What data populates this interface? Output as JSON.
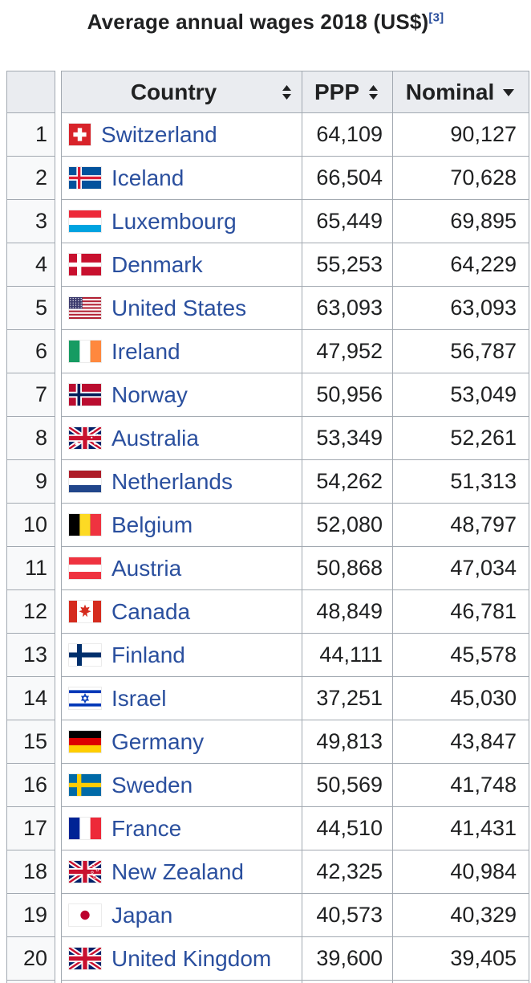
{
  "title": {
    "text": "Average annual wages 2018 (US$)",
    "reference": "[3]"
  },
  "colors": {
    "link": "#2a4f9e",
    "text": "#202122",
    "border": "#a2a9b1",
    "header_bg": "#eaecf0",
    "rank_cell_bg": "#f8f9fa",
    "row_bg": "#ffffff"
  },
  "table": {
    "headers": {
      "rank": "",
      "country": "Country",
      "ppp": "PPP",
      "nominal": "Nominal"
    },
    "sort_state": {
      "country": "sortable",
      "ppp": "sortable",
      "nominal": "descending"
    },
    "rows": [
      {
        "rank": "1",
        "country": "Switzerland",
        "flag": "switzerland",
        "ppp": "64,109",
        "nominal": "90,127"
      },
      {
        "rank": "2",
        "country": "Iceland",
        "flag": "iceland",
        "ppp": "66,504",
        "nominal": "70,628"
      },
      {
        "rank": "3",
        "country": "Luxembourg",
        "flag": "luxembourg",
        "ppp": "65,449",
        "nominal": "69,895"
      },
      {
        "rank": "4",
        "country": "Denmark",
        "flag": "denmark",
        "ppp": "55,253",
        "nominal": "64,229"
      },
      {
        "rank": "5",
        "country": "United States",
        "flag": "united-states",
        "ppp": "63,093",
        "nominal": "63,093"
      },
      {
        "rank": "6",
        "country": "Ireland",
        "flag": "ireland",
        "ppp": "47,952",
        "nominal": "56,787"
      },
      {
        "rank": "7",
        "country": "Norway",
        "flag": "norway",
        "ppp": "50,956",
        "nominal": "53,049"
      },
      {
        "rank": "8",
        "country": "Australia",
        "flag": "australia",
        "ppp": "53,349",
        "nominal": "52,261"
      },
      {
        "rank": "9",
        "country": "Netherlands",
        "flag": "netherlands",
        "ppp": "54,262",
        "nominal": "51,313"
      },
      {
        "rank": "10",
        "country": "Belgium",
        "flag": "belgium",
        "ppp": "52,080",
        "nominal": "48,797"
      },
      {
        "rank": "11",
        "country": "Austria",
        "flag": "austria",
        "ppp": "50,868",
        "nominal": "47,034"
      },
      {
        "rank": "12",
        "country": "Canada",
        "flag": "canada",
        "ppp": "48,849",
        "nominal": "46,781"
      },
      {
        "rank": "13",
        "country": "Finland",
        "flag": "finland",
        "ppp": "44,111",
        "nominal": "45,578"
      },
      {
        "rank": "14",
        "country": "Israel",
        "flag": "israel",
        "ppp": "37,251",
        "nominal": "45,030"
      },
      {
        "rank": "15",
        "country": "Germany",
        "flag": "germany",
        "ppp": "49,813",
        "nominal": "43,847"
      },
      {
        "rank": "16",
        "country": "Sweden",
        "flag": "sweden",
        "ppp": "50,569",
        "nominal": "41,748"
      },
      {
        "rank": "17",
        "country": "France",
        "flag": "france",
        "ppp": "44,510",
        "nominal": "41,431"
      },
      {
        "rank": "18",
        "country": "New Zealand",
        "flag": "new-zealand",
        "ppp": "42,325",
        "nominal": "40,984"
      },
      {
        "rank": "19",
        "country": "Japan",
        "flag": "japan",
        "ppp": "40,573",
        "nominal": "40,329"
      },
      {
        "rank": "20",
        "country": "United Kingdom",
        "flag": "united-kingdom",
        "ppp": "39,600",
        "nominal": "39,405"
      }
    ]
  }
}
